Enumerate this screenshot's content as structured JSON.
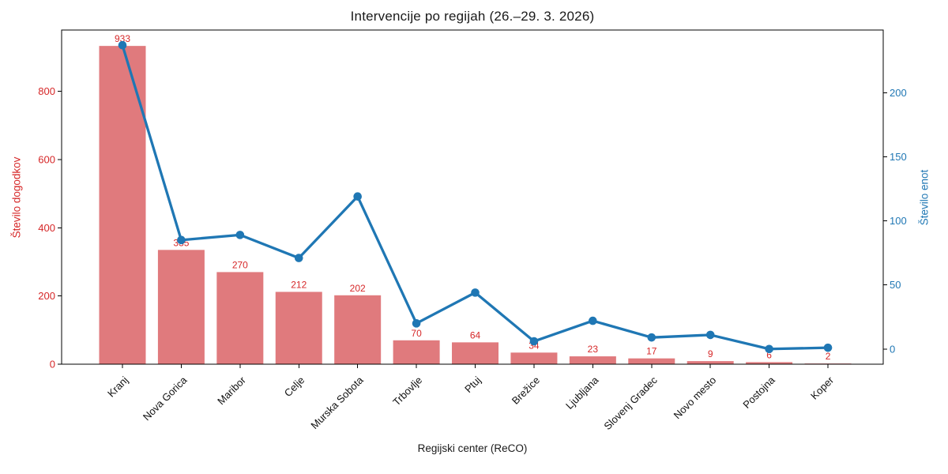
{
  "chart_data": {
    "type": "bar+line",
    "title": "Intervencije po regijah (26.–29. 3. 2026)",
    "xlabel": "Regijski center (ReCO)",
    "categories": [
      "Kranj",
      "Nova Gorica",
      "Maribor",
      "Celje",
      "Murska Sobota",
      "Trbovlje",
      "Ptuj",
      "Brežice",
      "Ljubljana",
      "Slovenj Gradec",
      "Novo mesto",
      "Postojna",
      "Koper"
    ],
    "series": [
      {
        "name": "Število dogodkov",
        "type": "bar",
        "axis": "left",
        "color": "#e07a7d",
        "value_label_color": "#d62728",
        "show_value_labels": true,
        "values": [
          933,
          335,
          270,
          212,
          202,
          70,
          64,
          34,
          23,
          17,
          9,
          6,
          2
        ]
      },
      {
        "name": "Število enot",
        "type": "line",
        "axis": "right",
        "color": "#1f77b4",
        "marker": "circle",
        "values": [
          237,
          85,
          89,
          71,
          119,
          20,
          44,
          6,
          22,
          9,
          11,
          0,
          1
        ]
      }
    ],
    "axes": {
      "left": {
        "label": "Število dogodkov",
        "color": "#d62728",
        "ticks": [
          0,
          200,
          400,
          600,
          800
        ],
        "lim": [
          0,
          979.65
        ]
      },
      "right": {
        "label": "Število enot",
        "color": "#1f77b4",
        "ticks": [
          0,
          50,
          100,
          150,
          200
        ],
        "lim": [
          -11.85,
          248.85
        ]
      },
      "x": {
        "label": "Regijski center (ReCO)",
        "tick_rotation_deg": 45
      }
    },
    "grid": false,
    "legend": "none",
    "spine_color": "#000000",
    "background": "#ffffff"
  }
}
